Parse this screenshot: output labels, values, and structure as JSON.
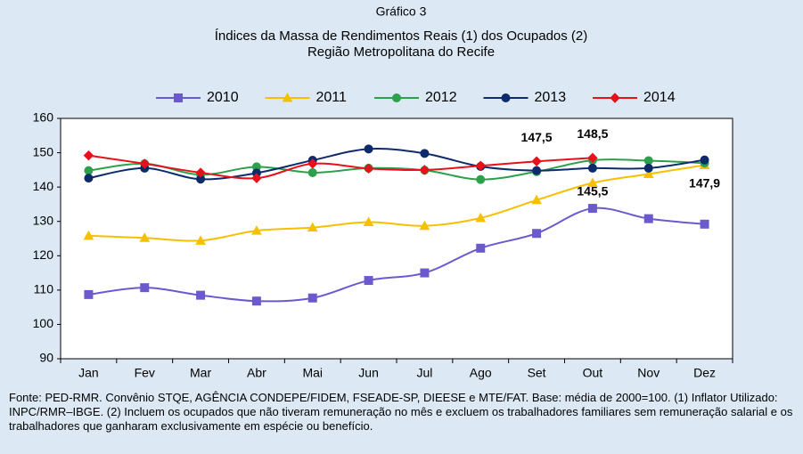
{
  "chart_data": {
    "type": "line",
    "title": "Gráfico 3",
    "subtitle": [
      "Índices da Massa de Rendimentos Reais (1) dos Ocupados (2)",
      "Região Metropolitana do Recife"
    ],
    "categories": [
      "Jan",
      "Fev",
      "Mar",
      "Abr",
      "Mai",
      "Jun",
      "Jul",
      "Ago",
      "Set",
      "Out",
      "Nov",
      "Dez"
    ],
    "series": [
      {
        "name": "2010",
        "color": "#6a5acd",
        "marker": "square",
        "values": [
          108.7,
          110.7,
          108.5,
          106.8,
          107.7,
          112.8,
          115.0,
          122.2,
          126.5,
          133.8,
          130.8,
          129.2
        ]
      },
      {
        "name": "2011",
        "color": "#f5c000",
        "marker": "triangle",
        "values": [
          125.8,
          125.2,
          124.4,
          127.3,
          128.2,
          129.8,
          128.7,
          131.0,
          136.2,
          141.2,
          143.8,
          146.4
        ]
      },
      {
        "name": "2012",
        "color": "#2ca04c",
        "marker": "circle",
        "values": [
          144.8,
          146.8,
          143.6,
          145.9,
          144.2,
          145.5,
          144.9,
          142.2,
          144.5,
          147.8,
          147.7,
          147.0
        ]
      },
      {
        "name": "2013",
        "color": "#0d2a6b",
        "marker": "circle",
        "values": [
          142.6,
          145.5,
          142.3,
          144.1,
          147.8,
          151.1,
          149.8,
          146.0,
          144.8,
          145.5,
          145.5,
          147.9
        ],
        "value_labels": [
          null,
          null,
          null,
          null,
          null,
          null,
          null,
          null,
          null,
          "145,5",
          null,
          "147,9"
        ]
      },
      {
        "name": "2014",
        "color": "#e8101a",
        "marker": "diamond",
        "values": [
          149.2,
          146.8,
          144.2,
          142.6,
          146.8,
          145.4,
          145.0,
          146.2,
          147.5,
          148.5,
          null,
          null
        ],
        "value_labels": [
          null,
          null,
          null,
          null,
          null,
          null,
          null,
          null,
          "147,5",
          "148,5",
          null,
          null
        ]
      }
    ],
    "ylim": [
      90,
      160
    ],
    "yticks": [
      90,
      100,
      110,
      120,
      130,
      140,
      150,
      160
    ],
    "grid": false,
    "legend": "top",
    "note": "Fonte: PED-RMR. Convênio STQE, AGÊNCIA CONDEPE/FIDEM, FSEADE-SP, DIEESE e MTE/FAT. Base: média de 2000=100. (1) Inflator Utilizado: INPC/RMR–IBGE. (2) Incluem os ocupados que não tiveram remuneração no mês e excluem os trabalhadores familiares sem remuneração salarial e os trabalhadores que ganharam exclusivamente em espécie ou benefício."
  }
}
